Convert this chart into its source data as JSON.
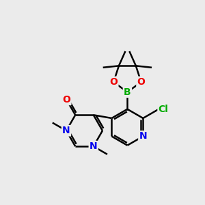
{
  "background_color": "#ebebeb",
  "bond_color": "#000000",
  "atom_colors": {
    "N": "#0000ee",
    "O": "#ee0000",
    "B": "#00aa00",
    "Cl": "#00aa00",
    "C": "#000000"
  },
  "figsize": [
    3.0,
    3.0
  ],
  "dpi": 100
}
